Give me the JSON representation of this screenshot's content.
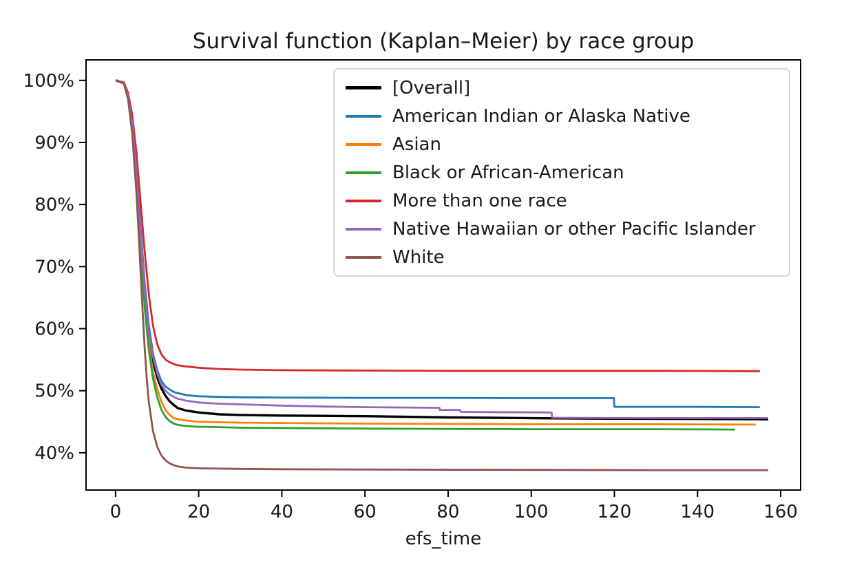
{
  "figure": {
    "title": "Survival function (Kaplan–Meier) by race group",
    "xlabel": "efs_time"
  },
  "chart_data": {
    "type": "line",
    "title": "Survival function (Kaplan–Meier) by race group",
    "subtitle": "",
    "xlabel": "efs_time",
    "ylabel": "",
    "grid": false,
    "legend_position": "upper center-right inside axes",
    "xlim": [
      -7.1,
      164.8
    ],
    "ylim": [
      34.0,
      103.3
    ],
    "x_ticks": [
      0,
      20,
      40,
      60,
      80,
      100,
      120,
      140,
      160
    ],
    "y_ticks": [
      {
        "value": 100,
        "label": "100%"
      },
      {
        "value": 90,
        "label": "90%"
      },
      {
        "value": 80,
        "label": "80%"
      },
      {
        "value": 70,
        "label": "70%"
      },
      {
        "value": 60,
        "label": "60%"
      },
      {
        "value": 50,
        "label": "50%"
      },
      {
        "value": 40,
        "label": "40%"
      }
    ],
    "axis_color": "#000000",
    "series": [
      {
        "name": "[Overall]",
        "color": "#000000",
        "line_width": 3.4,
        "points": [
          [
            0,
            100
          ],
          [
            2,
            99.6
          ],
          [
            3,
            97.5
          ],
          [
            4,
            93
          ],
          [
            4.5,
            89.5
          ],
          [
            5,
            85
          ],
          [
            5.5,
            80
          ],
          [
            6,
            74.5
          ],
          [
            6.5,
            69.5
          ],
          [
            7,
            65.5
          ],
          [
            7.5,
            62
          ],
          [
            8,
            59
          ],
          [
            9,
            54.8
          ],
          [
            10,
            52.2
          ],
          [
            11,
            50.4
          ],
          [
            12,
            49.2
          ],
          [
            13,
            48.3
          ],
          [
            14,
            47.7
          ],
          [
            15,
            47.2
          ],
          [
            17,
            46.8
          ],
          [
            20,
            46.5
          ],
          [
            25,
            46.2
          ],
          [
            30,
            46.1
          ],
          [
            40,
            46.0
          ],
          [
            50,
            45.95
          ],
          [
            60,
            45.9
          ],
          [
            70,
            45.8
          ],
          [
            80,
            45.7
          ],
          [
            90,
            45.65
          ],
          [
            105,
            45.55
          ],
          [
            120,
            45.5
          ],
          [
            140,
            45.45
          ],
          [
            157,
            45.4
          ]
        ]
      },
      {
        "name": "American Indian or Alaska Native",
        "color": "#1f77b4",
        "line_width": 2.8,
        "points": [
          [
            0,
            100
          ],
          [
            2,
            99.6
          ],
          [
            3,
            97.6
          ],
          [
            4,
            93.5
          ],
          [
            5,
            86
          ],
          [
            6,
            76.5
          ],
          [
            7,
            67.5
          ],
          [
            8,
            60.5
          ],
          [
            9,
            56
          ],
          [
            10,
            53.3
          ],
          [
            11,
            51.6
          ],
          [
            12,
            50.7
          ],
          [
            13,
            50.2
          ],
          [
            14,
            49.8
          ],
          [
            15,
            49.6
          ],
          [
            17,
            49.3
          ],
          [
            20,
            49.1
          ],
          [
            25,
            49.0
          ],
          [
            30,
            48.95
          ],
          [
            40,
            48.9
          ],
          [
            60,
            48.85
          ],
          [
            80,
            48.85
          ],
          [
            100,
            48.8
          ],
          [
            119.9,
            48.8
          ],
          [
            120,
            47.4
          ],
          [
            140,
            47.4
          ],
          [
            155,
            47.35
          ]
        ]
      },
      {
        "name": "Asian",
        "color": "#ff7f0e",
        "line_width": 2.8,
        "points": [
          [
            0,
            100
          ],
          [
            2,
            99.6
          ],
          [
            3,
            97.4
          ],
          [
            4,
            92.8
          ],
          [
            5,
            84.5
          ],
          [
            6,
            74
          ],
          [
            7,
            64.5
          ],
          [
            8,
            57.5
          ],
          [
            9,
            53
          ],
          [
            10,
            50.3
          ],
          [
            11,
            48.3
          ],
          [
            12,
            46.9
          ],
          [
            13,
            46.1
          ],
          [
            14,
            45.6
          ],
          [
            15,
            45.4
          ],
          [
            17,
            45.2
          ],
          [
            20,
            45.0
          ],
          [
            30,
            44.85
          ],
          [
            40,
            44.8
          ],
          [
            60,
            44.7
          ],
          [
            80,
            44.65
          ],
          [
            100,
            44.6
          ],
          [
            130,
            44.6
          ],
          [
            154,
            44.55
          ]
        ]
      },
      {
        "name": "Black or African-American",
        "color": "#2ca02c",
        "line_width": 2.8,
        "points": [
          [
            0,
            100
          ],
          [
            2,
            99.5
          ],
          [
            3,
            97.2
          ],
          [
            4,
            92.5
          ],
          [
            5,
            84
          ],
          [
            6,
            73.5
          ],
          [
            7,
            63.5
          ],
          [
            8,
            56.5
          ],
          [
            9,
            52
          ],
          [
            10,
            49
          ],
          [
            11,
            47
          ],
          [
            12,
            45.8
          ],
          [
            13,
            45.1
          ],
          [
            14,
            44.7
          ],
          [
            15,
            44.5
          ],
          [
            17,
            44.3
          ],
          [
            20,
            44.2
          ],
          [
            30,
            44.05
          ],
          [
            40,
            44.0
          ],
          [
            60,
            43.9
          ],
          [
            80,
            43.85
          ],
          [
            100,
            43.8
          ],
          [
            130,
            43.8
          ],
          [
            149,
            43.75
          ]
        ]
      },
      {
        "name": "More than one race",
        "color": "#d62728",
        "line_width": 2.8,
        "points": [
          [
            0,
            100
          ],
          [
            2,
            99.7
          ],
          [
            3,
            98
          ],
          [
            4,
            94.5
          ],
          [
            5,
            88.5
          ],
          [
            6,
            80.5
          ],
          [
            7,
            72.5
          ],
          [
            8,
            65.5
          ],
          [
            9,
            60.5
          ],
          [
            10,
            57.5
          ],
          [
            11,
            55.9
          ],
          [
            12,
            55.0
          ],
          [
            13,
            54.6
          ],
          [
            14,
            54.3
          ],
          [
            15,
            54.1
          ],
          [
            17,
            53.9
          ],
          [
            20,
            53.7
          ],
          [
            25,
            53.5
          ],
          [
            30,
            53.4
          ],
          [
            40,
            53.3
          ],
          [
            60,
            53.25
          ],
          [
            80,
            53.2
          ],
          [
            100,
            53.2
          ],
          [
            130,
            53.2
          ],
          [
            155,
            53.15
          ]
        ]
      },
      {
        "name": "Native Hawaiian or other Pacific Islander",
        "color": "#9467bd",
        "line_width": 2.8,
        "points": [
          [
            0,
            100
          ],
          [
            2,
            99.6
          ],
          [
            3,
            97.5
          ],
          [
            4,
            93.2
          ],
          [
            5,
            85.5
          ],
          [
            6,
            75.5
          ],
          [
            7,
            66.5
          ],
          [
            8,
            59.5
          ],
          [
            9,
            55.5
          ],
          [
            10,
            52.8
          ],
          [
            11,
            51.0
          ],
          [
            12,
            50.0
          ],
          [
            13,
            49.4
          ],
          [
            14,
            49.0
          ],
          [
            15,
            48.7
          ],
          [
            17,
            48.4
          ],
          [
            20,
            48.1
          ],
          [
            25,
            47.9
          ],
          [
            30,
            47.8
          ],
          [
            40,
            47.6
          ],
          [
            50,
            47.45
          ],
          [
            60,
            47.35
          ],
          [
            70,
            47.3
          ],
          [
            77.9,
            47.25
          ],
          [
            78,
            46.9
          ],
          [
            82.9,
            46.9
          ],
          [
            83,
            46.6
          ],
          [
            90,
            46.55
          ],
          [
            104.9,
            46.5
          ],
          [
            105,
            45.65
          ],
          [
            120,
            45.6
          ],
          [
            140,
            45.6
          ],
          [
            157,
            45.6
          ]
        ]
      },
      {
        "name": "White",
        "color": "#8c564b",
        "line_width": 2.8,
        "points": [
          [
            0,
            100
          ],
          [
            2,
            99.5
          ],
          [
            3,
            97
          ],
          [
            4,
            91.5
          ],
          [
            5,
            82
          ],
          [
            5.5,
            76
          ],
          [
            6,
            69.5
          ],
          [
            6.5,
            63
          ],
          [
            7,
            57
          ],
          [
            7.5,
            52
          ],
          [
            8,
            48.2
          ],
          [
            9,
            43.5
          ],
          [
            10,
            41
          ],
          [
            11,
            39.6
          ],
          [
            12,
            38.8
          ],
          [
            13,
            38.3
          ],
          [
            14,
            38.0
          ],
          [
            15,
            37.8
          ],
          [
            17,
            37.6
          ],
          [
            20,
            37.5
          ],
          [
            30,
            37.4
          ],
          [
            40,
            37.35
          ],
          [
            60,
            37.3
          ],
          [
            100,
            37.25
          ],
          [
            130,
            37.2
          ],
          [
            157,
            37.2
          ]
        ]
      }
    ]
  }
}
